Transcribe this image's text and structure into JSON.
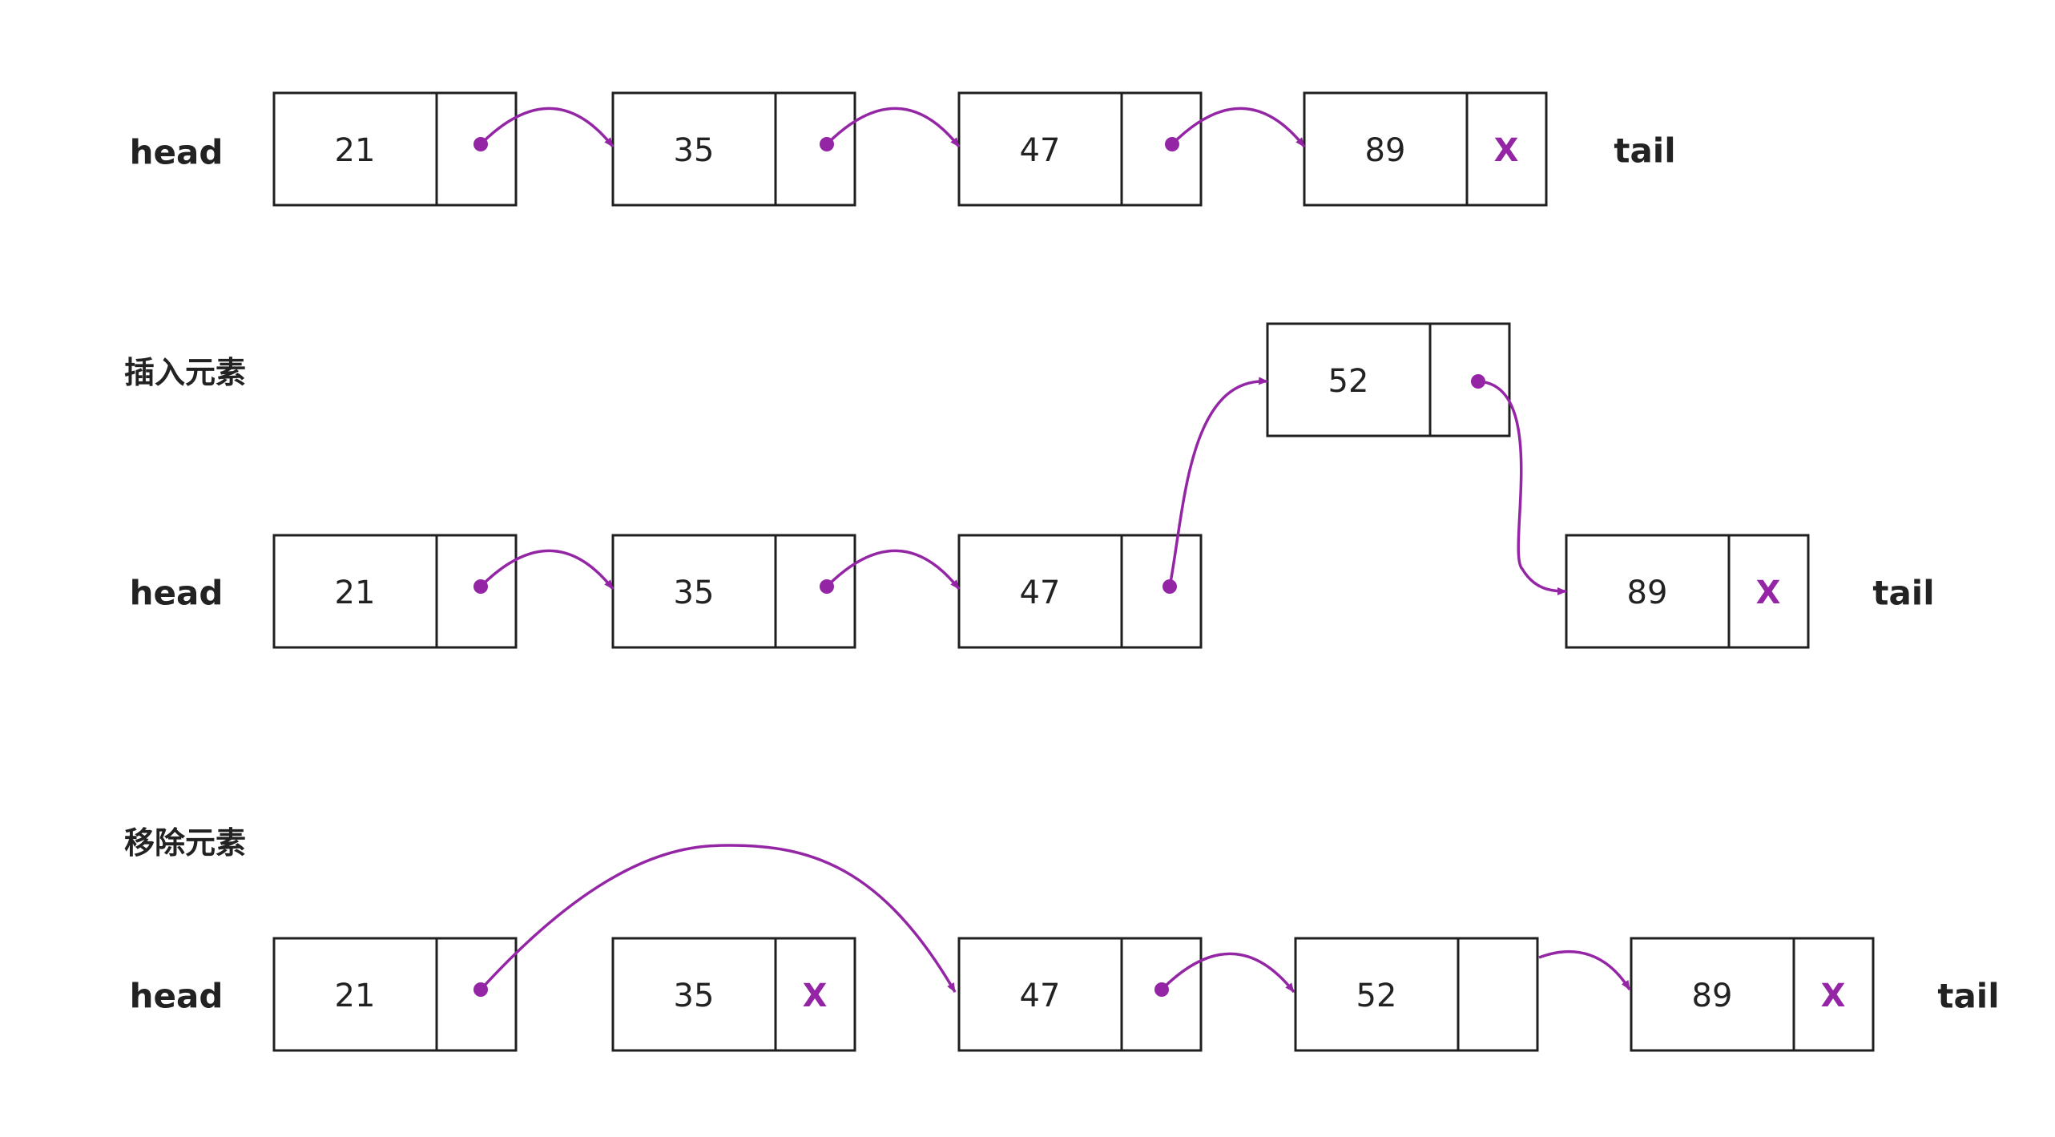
{
  "colors": {
    "accent": "#9426a6",
    "border": "#1f1f1f",
    "text": "#222222"
  },
  "head_label": "head",
  "tail_label": "tail",
  "null_marker": "X",
  "rows": [
    {
      "title": "",
      "nodes": [
        "21",
        "35",
        "47",
        "89"
      ]
    },
    {
      "title": "插入元素",
      "nodes": [
        "21",
        "35",
        "47",
        "52",
        "89"
      ]
    },
    {
      "title": "移除元素",
      "nodes": [
        "21",
        "35",
        "47",
        "52",
        "89"
      ]
    }
  ]
}
